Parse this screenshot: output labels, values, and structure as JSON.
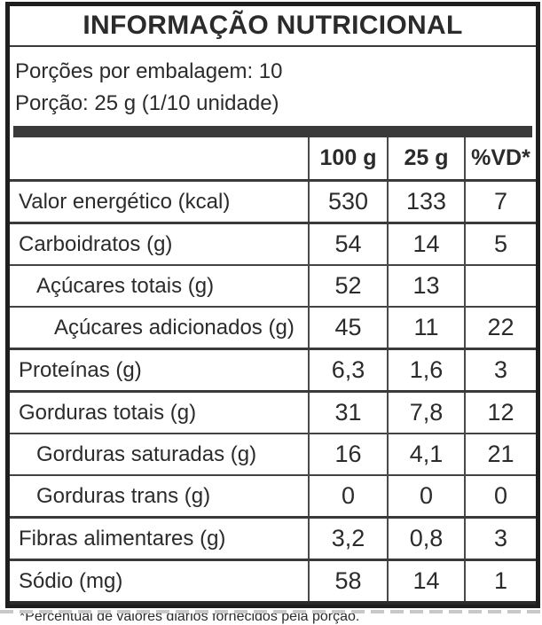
{
  "title": "INFORMAÇÃO NUTRICIONAL",
  "serving_info": {
    "servings_per_package": "Porções por embalagem: 10",
    "portion_size": "Porção: 25 g (1/10 unidade)"
  },
  "table": {
    "columns": [
      "100 g",
      "25 g",
      "%VD*"
    ],
    "rows": [
      {
        "label": "Valor energético (kcal)",
        "indent": 0,
        "values": [
          "530",
          "133",
          "7"
        ]
      },
      {
        "label": "Carboidratos (g)",
        "indent": 0,
        "values": [
          "54",
          "14",
          "5"
        ]
      },
      {
        "label": "Açúcares totais (g)",
        "indent": 1,
        "values": [
          "52",
          "13",
          ""
        ]
      },
      {
        "label": "Açúcares adicionados (g)",
        "indent": 2,
        "values": [
          "45",
          "11",
          "22"
        ]
      },
      {
        "label": "Proteínas (g)",
        "indent": 0,
        "values": [
          "6,3",
          "1,6",
          "3"
        ]
      },
      {
        "label": "Gorduras totais (g)",
        "indent": 0,
        "values": [
          "31",
          "7,8",
          "12"
        ]
      },
      {
        "label": "Gorduras saturadas (g)",
        "indent": 1,
        "values": [
          "16",
          "4,1",
          "21"
        ]
      },
      {
        "label": "Gorduras trans (g)",
        "indent": 1,
        "values": [
          "0",
          "0",
          "0"
        ]
      },
      {
        "label": "Fibras alimentares (g)",
        "indent": 0,
        "values": [
          "3,2",
          "0,8",
          "3"
        ]
      },
      {
        "label": "Sódio (mg)",
        "indent": 0,
        "values": [
          "58",
          "14",
          "1"
        ]
      }
    ]
  },
  "footnote": "*Percentual de valores diários fornecidos pela porção.",
  "colors": {
    "border": "#1e1e1e",
    "rule": "#3a3a3a",
    "bar": "#3a3a3a",
    "text": "#2b2b2b",
    "dash": "#c8c8c8"
  }
}
